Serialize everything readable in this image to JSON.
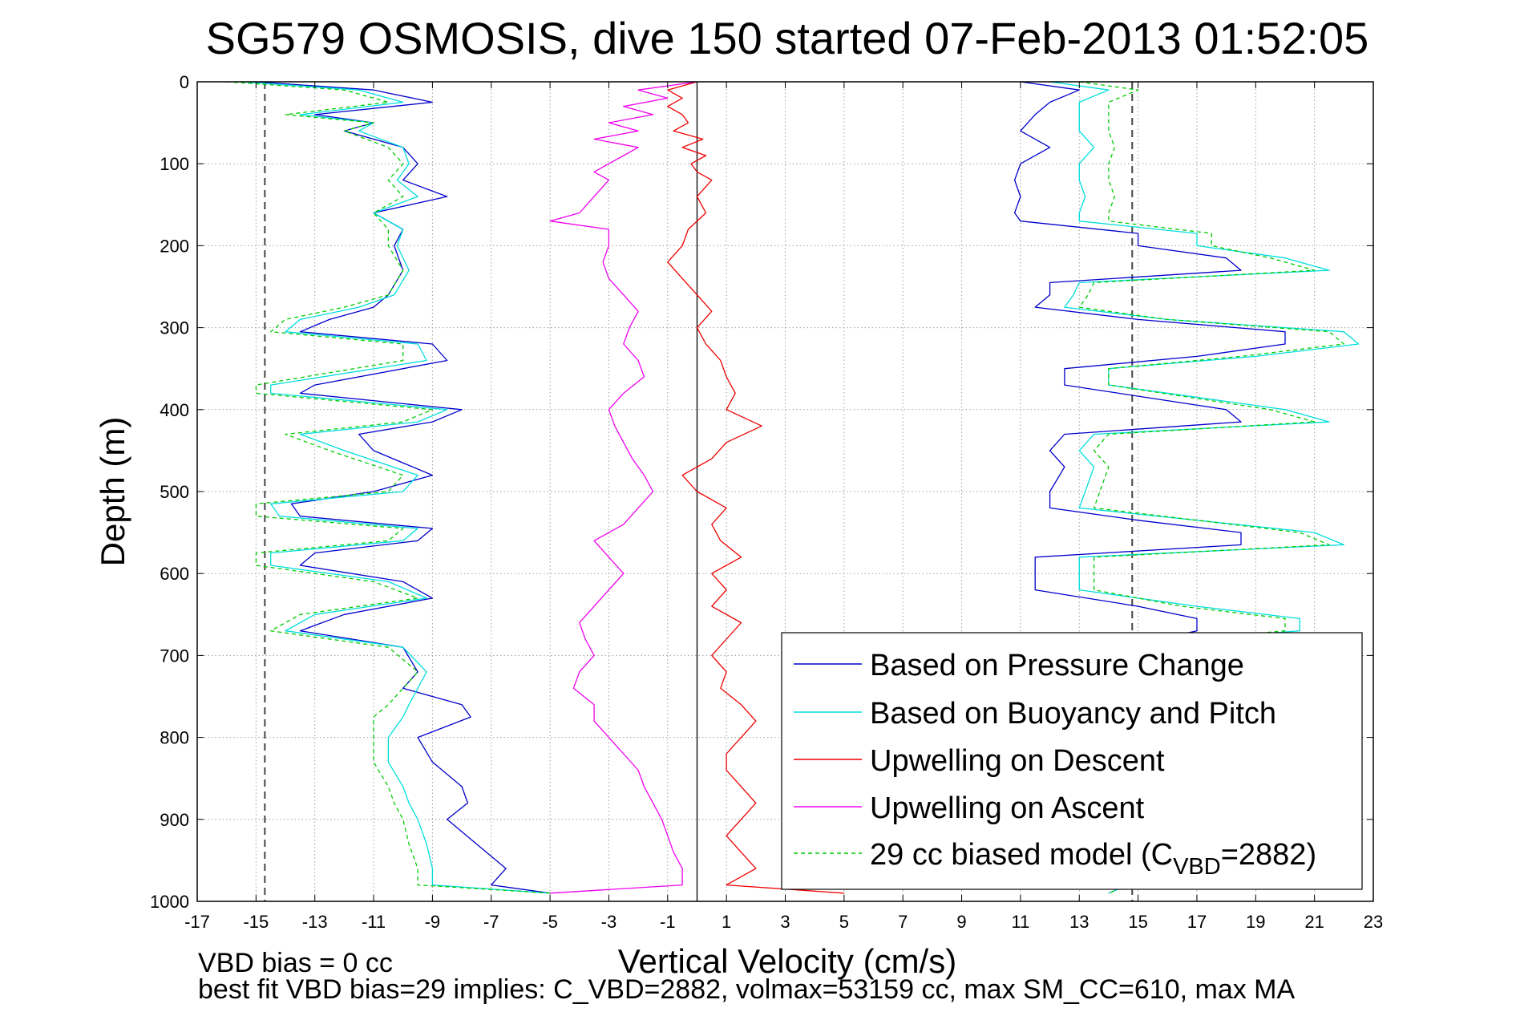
{
  "chart_data": {
    "type": "line",
    "title": "SG579 OSMOSIS, dive 150 started 07-Feb-2013 01:52:05",
    "xlabel": "Vertical Velocity (cm/s)",
    "ylabel": "Depth (m)",
    "xlim": [
      -17,
      23
    ],
    "ylim": [
      0,
      1000
    ],
    "y_reversed": true,
    "grid": true,
    "x_ticks": [
      -17,
      -15,
      -13,
      -11,
      -9,
      -7,
      -5,
      -3,
      -1,
      1,
      3,
      5,
      7,
      9,
      11,
      13,
      15,
      17,
      19,
      21,
      23
    ],
    "y_ticks": [
      0,
      100,
      200,
      300,
      400,
      500,
      600,
      700,
      800,
      900,
      1000
    ],
    "legend_position": "bottom-right",
    "reference_lines": [
      {
        "orientation": "vertical",
        "x": -14.7,
        "style": "dashed",
        "color": "#444444"
      },
      {
        "orientation": "vertical",
        "x": 14.8,
        "style": "dashed",
        "color": "#444444"
      },
      {
        "orientation": "vertical",
        "x": 0,
        "style": "solid",
        "color": "#000000"
      }
    ],
    "series": [
      {
        "name": "Based on Pressure Change",
        "color": "#0000cc",
        "dash": "solid",
        "segments": [
          {
            "y": [
              0,
              10,
              25,
              40,
              50,
              60,
              80,
              100,
              120,
              140,
              160,
              180,
              200,
              230,
              260,
              275,
              290,
              305,
              320,
              340,
              370,
              380,
              400,
              415,
              430,
              450,
              480,
              500,
              515,
              530,
              545,
              560,
              575,
              590,
              610,
              630,
              650,
              670,
              690,
              720,
              740,
              760,
              775,
              800,
              830,
              860,
              880,
              900,
              930,
              960,
              980,
              990
            ],
            "x": [
              -15,
              -11,
              -9,
              -13,
              -11,
              -12,
              -10,
              -9.5,
              -10,
              -8.5,
              -11,
              -10,
              -10.3,
              -10,
              -10.5,
              -11,
              -12.5,
              -13.5,
              -9,
              -8.5,
              -13,
              -13.5,
              -8,
              -9,
              -11.5,
              -11,
              -9,
              -11,
              -13.8,
              -13.5,
              -9,
              -9.5,
              -13,
              -13.5,
              -10,
              -9,
              -12,
              -13.5,
              -10,
              -9.5,
              -10,
              -8,
              -7.7,
              -9.5,
              -9,
              -8,
              -7.8,
              -8.5,
              -7.5,
              -6.5,
              -7,
              -5
            ]
          },
          {
            "y": [
              0,
              10,
              25,
              40,
              60,
              80,
              100,
              120,
              140,
              160,
              170,
              185,
              200,
              215,
              230,
              245,
              260,
              275,
              290,
              305,
              320,
              335,
              350,
              370,
              400,
              415,
              430,
              450,
              470,
              500,
              520,
              535,
              550,
              565,
              580,
              600,
              620,
              640,
              655,
              670,
              685,
              700,
              720,
              740,
              760,
              780,
              800,
              830,
              860,
              890,
              920,
              950,
              975,
              990
            ],
            "x": [
              11,
              13,
              12,
              11.5,
              11,
              12,
              11,
              10.8,
              11,
              10.8,
              11,
              15,
              15,
              18,
              18.5,
              12,
              12,
              11.5,
              15,
              20,
              20,
              17,
              12.5,
              12.5,
              18,
              18.5,
              12.5,
              12,
              12.5,
              12,
              12,
              15,
              18.5,
              18.5,
              11.5,
              11.5,
              11.5,
              15,
              17,
              17,
              15,
              15,
              15,
              15,
              15,
              15,
              15,
              15,
              15,
              15,
              15,
              15,
              15,
              14
            ]
          }
        ]
      },
      {
        "name": "Based on Buoyancy and Pitch",
        "color": "#00dddd",
        "dash": "solid",
        "segments": [
          {
            "y": [
              0,
              10,
              25,
              40,
              50,
              60,
              80,
              100,
              120,
              140,
              160,
              180,
              200,
              230,
              260,
              275,
              290,
              305,
              320,
              340,
              370,
              380,
              400,
              415,
              430,
              450,
              480,
              500,
              515,
              530,
              545,
              560,
              575,
              590,
              610,
              630,
              650,
              670,
              690,
              720,
              740,
              760,
              775,
              800,
              830,
              860,
              880,
              900,
              930,
              960,
              980,
              990
            ],
            "x": [
              -15.5,
              -11.5,
              -10,
              -13.5,
              -11,
              -11.5,
              -10,
              -9.8,
              -10.2,
              -9.5,
              -11,
              -10,
              -10.2,
              -9.8,
              -10.3,
              -11.5,
              -13.5,
              -14,
              -9.5,
              -9.2,
              -14.5,
              -14.5,
              -8.5,
              -9.5,
              -13.5,
              -12,
              -9.5,
              -10,
              -14.5,
              -14.2,
              -9.5,
              -10,
              -14.5,
              -14.5,
              -10.5,
              -9.2,
              -13,
              -14,
              -10,
              -9.2,
              -9.5,
              -9.8,
              -10,
              -10.5,
              -10.5,
              -10,
              -9.8,
              -9.5,
              -9.2,
              -9,
              -9,
              -5
            ]
          },
          {
            "y": [
              0,
              10,
              25,
              40,
              60,
              80,
              100,
              120,
              140,
              160,
              170,
              185,
              200,
              215,
              230,
              245,
              260,
              275,
              290,
              305,
              320,
              335,
              350,
              370,
              400,
              415,
              430,
              450,
              470,
              500,
              520,
              535,
              550,
              565,
              580,
              600,
              620,
              640,
              655,
              670,
              685,
              700,
              720,
              740,
              760,
              780,
              800,
              830,
              860,
              890,
              920,
              950,
              975,
              990
            ],
            "x": [
              12,
              14,
              13,
              13,
              13,
              13.5,
              13,
              13,
              13.2,
              13,
              13,
              17,
              17,
              20,
              21.5,
              13,
              12.8,
              12.5,
              16,
              22,
              22.5,
              19,
              14,
              14,
              20,
              21.5,
              13.5,
              13,
              13.5,
              13.2,
              13,
              17,
              21,
              22,
              13,
              13,
              13,
              17,
              20.5,
              20.5,
              15,
              15,
              15,
              15,
              15,
              15,
              15,
              15,
              15,
              15,
              15,
              15,
              15,
              14
            ]
          }
        ]
      },
      {
        "name": "Upwelling on Descent",
        "color": "#ee0000",
        "dash": "solid",
        "segments": [
          {
            "y": [
              0,
              10,
              20,
              30,
              40,
              50,
              60,
              70,
              80,
              90,
              100,
              110,
              120,
              140,
              160,
              180,
              200,
              220,
              240,
              260,
              280,
              300,
              320,
              340,
              360,
              380,
              400,
              420,
              440,
              460,
              480,
              500,
              520,
              540,
              560,
              580,
              600,
              620,
              640,
              660,
              680,
              700,
              720,
              740,
              760,
              780,
              800,
              820,
              840,
              860,
              880,
              900,
              920,
              940,
              960,
              980,
              990
            ],
            "x": [
              0,
              -1,
              -0.5,
              -1,
              -0.5,
              -0.3,
              -0.8,
              0.2,
              -0.5,
              0.3,
              -0.2,
              0,
              0.5,
              0,
              0.3,
              -0.3,
              -0.5,
              -1,
              -0.5,
              0,
              0.5,
              0,
              0.3,
              0.8,
              1,
              1.3,
              1,
              2.2,
              1,
              0.5,
              -0.5,
              0,
              1,
              0.5,
              0.8,
              1.5,
              0.5,
              1,
              0.5,
              1.5,
              1,
              0.5,
              1,
              0.8,
              1.5,
              2,
              1.5,
              1,
              1,
              1.5,
              2,
              1.5,
              1,
              1.5,
              2,
              1,
              5
            ]
          }
        ]
      },
      {
        "name": "Upwelling on Ascent",
        "color": "#ee00ee",
        "dash": "solid",
        "segments": [
          {
            "y": [
              0,
              10,
              20,
              30,
              40,
              50,
              60,
              70,
              80,
              90,
              100,
              110,
              120,
              140,
              160,
              170,
              180,
              200,
              220,
              240,
              260,
              280,
              300,
              320,
              340,
              360,
              380,
              400,
              420,
              440,
              460,
              480,
              500,
              520,
              540,
              560,
              580,
              600,
              620,
              640,
              660,
              680,
              700,
              720,
              740,
              760,
              780,
              800,
              820,
              840,
              860,
              880,
              900,
              920,
              940,
              960,
              980,
              990
            ],
            "x": [
              0,
              -2,
              -1,
              -2.5,
              -1.5,
              -3,
              -2,
              -3.5,
              -2,
              -2.5,
              -3,
              -3.5,
              -3,
              -3.5,
              -4,
              -5,
              -3,
              -3,
              -3.2,
              -3,
              -2.5,
              -2,
              -2.3,
              -2.5,
              -2,
              -1.8,
              -2.5,
              -3,
              -2.8,
              -2.5,
              -2.2,
              -1.8,
              -1.5,
              -2,
              -2.5,
              -3.5,
              -3,
              -2.5,
              -3,
              -3.5,
              -4,
              -3.8,
              -3.5,
              -4,
              -4.2,
              -3.5,
              -3.5,
              -3,
              -2.5,
              -2,
              -1.8,
              -1.5,
              -1.2,
              -1,
              -0.8,
              -0.5,
              -0.5,
              -5
            ]
          }
        ]
      },
      {
        "name": "29 cc biased model (C_VBD=2882)",
        "color": "#00cc00",
        "dash": "dashed",
        "segments": [
          {
            "y": [
              0,
              10,
              25,
              40,
              50,
              60,
              80,
              100,
              120,
              140,
              160,
              180,
              200,
              230,
              260,
              275,
              290,
              305,
              320,
              340,
              370,
              380,
              400,
              415,
              430,
              450,
              480,
              500,
              515,
              530,
              545,
              560,
              575,
              590,
              610,
              630,
              650,
              670,
              690,
              720,
              740,
              760,
              775,
              800,
              830,
              860,
              880,
              900,
              930,
              960,
              980,
              990
            ],
            "x": [
              -16,
              -12,
              -10.5,
              -14,
              -11,
              -12,
              -10.5,
              -10,
              -10.5,
              -10,
              -11,
              -10.5,
              -10.5,
              -10,
              -10.5,
              -12,
              -14,
              -14.5,
              -10,
              -10,
              -15,
              -15,
              -9,
              -10,
              -14,
              -12.5,
              -10,
              -10.5,
              -15,
              -15,
              -10,
              -10.5,
              -15,
              -15,
              -11,
              -9.5,
              -13.5,
              -14.5,
              -10.5,
              -9.5,
              -10,
              -10.5,
              -11,
              -11,
              -11,
              -10.5,
              -10.3,
              -10,
              -9.8,
              -9.5,
              -9.5,
              -5
            ]
          },
          {
            "y": [
              0,
              10,
              25,
              40,
              60,
              80,
              100,
              120,
              140,
              160,
              170,
              185,
              200,
              215,
              230,
              245,
              260,
              275,
              290,
              305,
              320,
              335,
              350,
              370,
              400,
              415,
              430,
              450,
              470,
              500,
              520,
              535,
              550,
              565,
              580,
              600,
              620,
              640,
              655,
              670,
              685,
              700,
              720,
              740,
              760,
              780,
              800,
              830,
              860,
              890,
              920,
              950,
              975,
              990
            ],
            "x": [
              13,
              15,
              14,
              14,
              14,
              14.2,
              14,
              14,
              14.2,
              14,
              14,
              17.5,
              17.5,
              19.5,
              21,
              13.5,
              13.3,
              13,
              16,
              21.5,
              22,
              18.5,
              14,
              14,
              19.5,
              21,
              14,
              13.5,
              14,
              13.7,
              13.5,
              17,
              20.5,
              21.5,
              13.5,
              13.5,
              13.5,
              16.5,
              20,
              20,
              15,
              15,
              15,
              15,
              15,
              15,
              15,
              15,
              15,
              15,
              15,
              15,
              15,
              14
            ]
          }
        ]
      }
    ],
    "legend": [
      {
        "label": "Based on Pressure Change",
        "series_index": 0
      },
      {
        "label": "Based on Buoyancy and Pitch",
        "series_index": 1
      },
      {
        "label": "Upwelling on Descent",
        "series_index": 2
      },
      {
        "label": "Upwelling on Ascent",
        "series_index": 3
      },
      {
        "label_main": "29 cc biased model (C",
        "label_sub": "VBD",
        "label_tail": "=2882)",
        "series_index": 4
      }
    ]
  },
  "footer": {
    "line1": "VBD bias = 0 cc",
    "line2": "best fit VBD bias=29 implies: C_VBD=2882, volmax=53159 cc, max SM_CC=610, max MA"
  }
}
